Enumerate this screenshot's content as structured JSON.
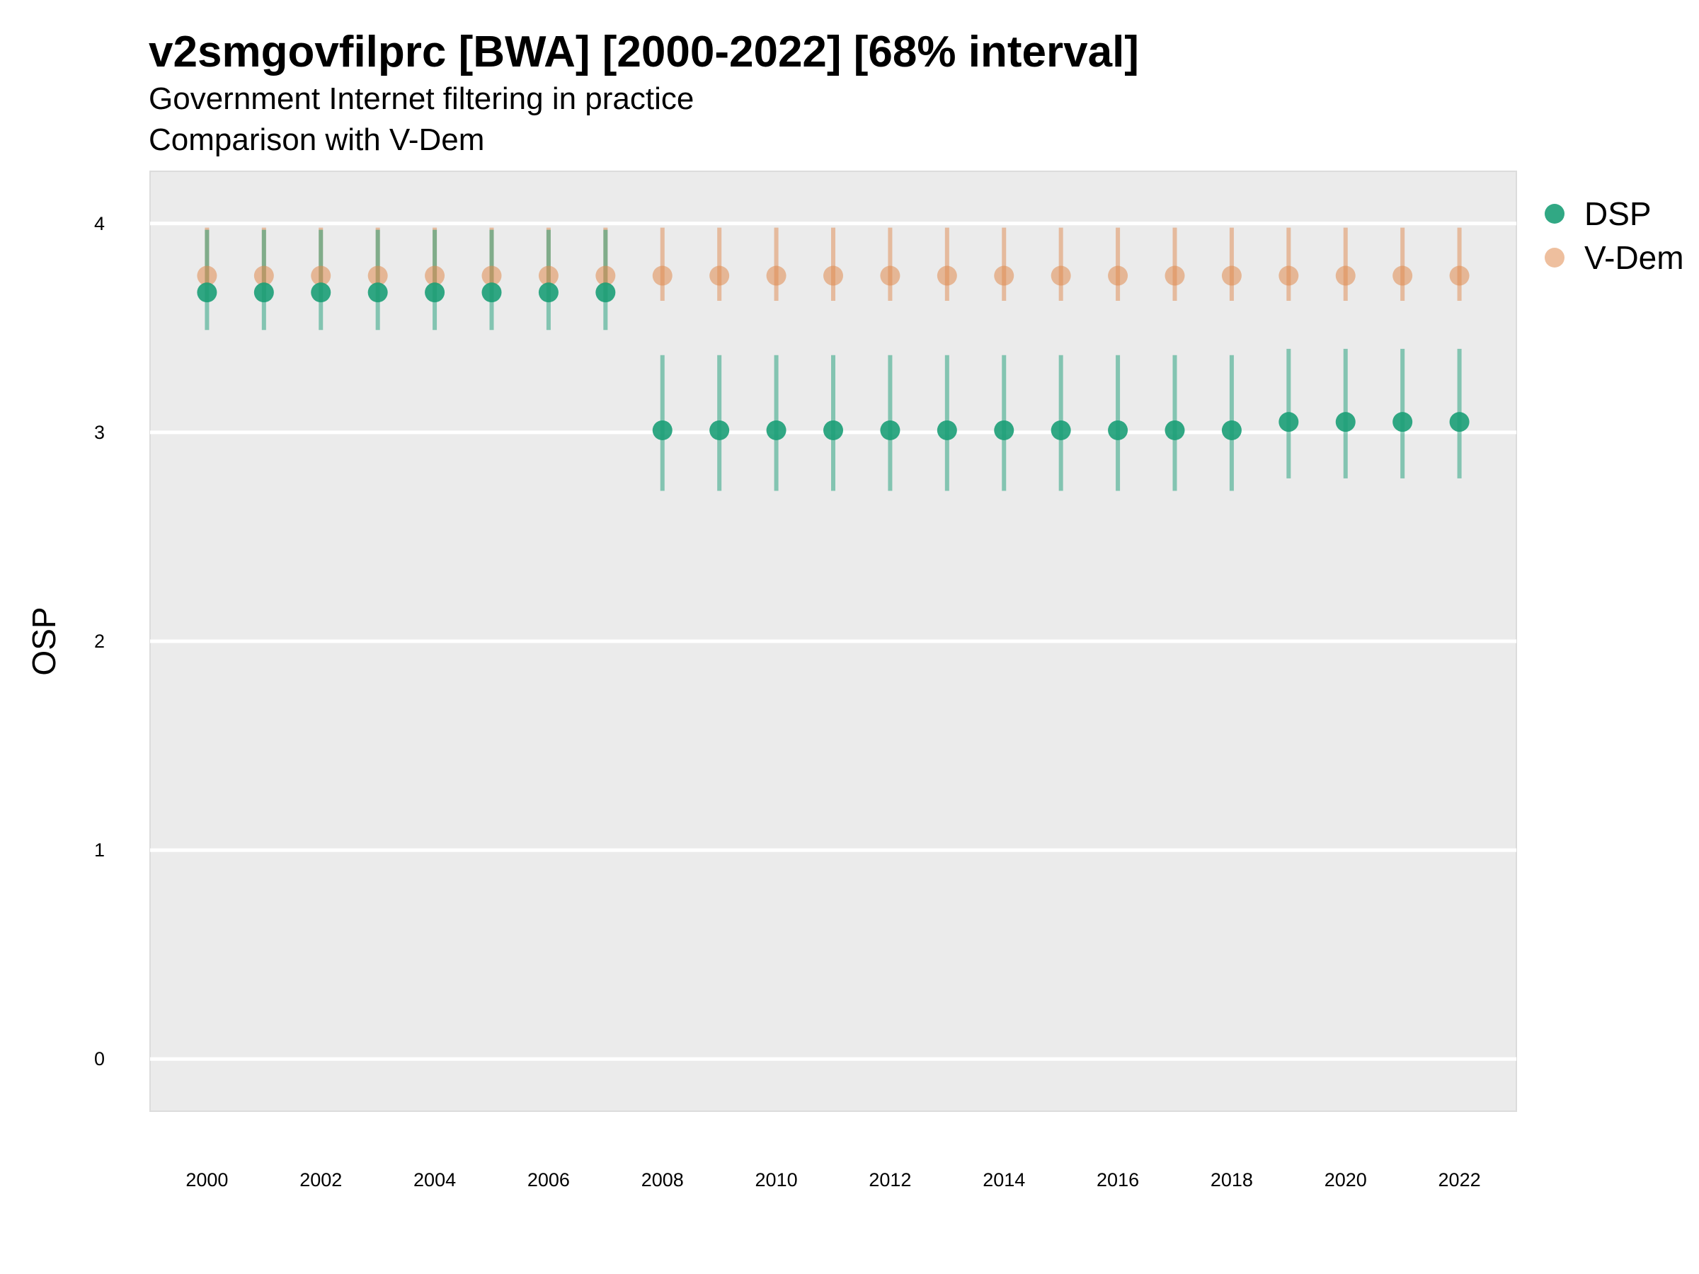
{
  "chart_data": {
    "type": "scatter",
    "title": "v2smgovfilprc [BWA] [2000-2022] [68% interval]",
    "subtitle": "Government Internet filtering in practice",
    "caption": "Comparison with V-Dem",
    "xlabel": "",
    "ylabel": "OSP",
    "xlim": [
      1999,
      2023
    ],
    "ylim": [
      -0.25,
      4.25
    ],
    "x_ticks": [
      2000,
      2002,
      2004,
      2006,
      2008,
      2010,
      2012,
      2014,
      2016,
      2018,
      2020,
      2022
    ],
    "y_ticks": [
      0,
      1,
      2,
      3,
      4
    ],
    "grid": true,
    "legend_position": "right",
    "series": [
      {
        "name": "DSP",
        "color": "#1b9e77",
        "x": [
          2000,
          2001,
          2002,
          2003,
          2004,
          2005,
          2006,
          2007,
          2008,
          2009,
          2010,
          2011,
          2012,
          2013,
          2014,
          2015,
          2016,
          2017,
          2018,
          2019,
          2020,
          2021,
          2022
        ],
        "values": [
          3.67,
          3.67,
          3.67,
          3.67,
          3.67,
          3.67,
          3.67,
          3.67,
          3.01,
          3.01,
          3.01,
          3.01,
          3.01,
          3.01,
          3.01,
          3.01,
          3.01,
          3.01,
          3.01,
          3.05,
          3.05,
          3.05,
          3.05
        ],
        "lower": [
          3.49,
          3.49,
          3.49,
          3.49,
          3.49,
          3.49,
          3.49,
          3.49,
          2.72,
          2.72,
          2.72,
          2.72,
          2.72,
          2.72,
          2.72,
          2.72,
          2.72,
          2.72,
          2.72,
          2.78,
          2.78,
          2.78,
          2.78
        ],
        "upper": [
          3.97,
          3.97,
          3.97,
          3.97,
          3.97,
          3.97,
          3.97,
          3.97,
          3.37,
          3.37,
          3.37,
          3.37,
          3.37,
          3.37,
          3.37,
          3.37,
          3.37,
          3.37,
          3.37,
          3.4,
          3.4,
          3.4,
          3.4
        ]
      },
      {
        "name": "V-Dem",
        "color": "#e08a4f",
        "x": [
          2000,
          2001,
          2002,
          2003,
          2004,
          2005,
          2006,
          2007,
          2008,
          2009,
          2010,
          2011,
          2012,
          2013,
          2014,
          2015,
          2016,
          2017,
          2018,
          2019,
          2020,
          2021,
          2022
        ],
        "values": [
          3.75,
          3.75,
          3.75,
          3.75,
          3.75,
          3.75,
          3.75,
          3.75,
          3.75,
          3.75,
          3.75,
          3.75,
          3.75,
          3.75,
          3.75,
          3.75,
          3.75,
          3.75,
          3.75,
          3.75,
          3.75,
          3.75,
          3.75
        ],
        "lower": [
          3.63,
          3.63,
          3.63,
          3.63,
          3.63,
          3.63,
          3.63,
          3.63,
          3.63,
          3.63,
          3.63,
          3.63,
          3.63,
          3.63,
          3.63,
          3.63,
          3.63,
          3.63,
          3.63,
          3.63,
          3.63,
          3.63,
          3.63
        ],
        "upper": [
          3.98,
          3.98,
          3.98,
          3.98,
          3.98,
          3.98,
          3.98,
          3.98,
          3.98,
          3.98,
          3.98,
          3.98,
          3.98,
          3.98,
          3.98,
          3.98,
          3.98,
          3.98,
          3.98,
          3.98,
          3.98,
          3.98,
          3.98
        ]
      }
    ]
  }
}
